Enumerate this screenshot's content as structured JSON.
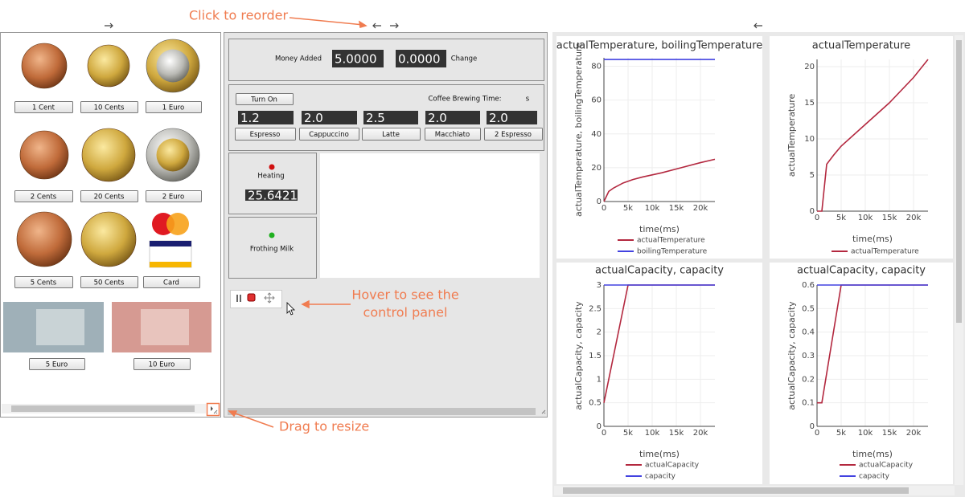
{
  "annotations": {
    "reorder": "Click to reorder",
    "hover": [
      "Hover to see the",
      "control panel"
    ],
    "resize": "Drag to resize"
  },
  "payments": [
    "1 Cent",
    "10 Cents",
    "1 Euro",
    "2 Cents",
    "20 Cents",
    "2 Euro",
    "5 Cents",
    "50 Cents",
    "Card",
    "5 Euro",
    "10 Euro"
  ],
  "machine": {
    "money_added_label": "Money Added",
    "money_added": "5.0000",
    "change": "0.0000",
    "change_label": "Change",
    "turn_on": "Turn On",
    "brewing_time_label": "Coffee Brewing Time:",
    "brewing_unit": "s",
    "brew_times": [
      "1.2",
      "2.0",
      "2.5",
      "2.0",
      "2.0"
    ],
    "drinks": [
      "Espresso",
      "Cappuccino",
      "Latte",
      "Macchiato",
      "2 Espresso"
    ],
    "heating_label": "Heating",
    "heating_value": "25.6421",
    "frothing_label": "Frothing Milk"
  },
  "plots": [
    {
      "type": "line",
      "title": "actualTemperature, boilingTemperature",
      "x_label": "time(ms)",
      "y_label": "actualTemperature, boilingTemperature",
      "xlim": [
        0,
        23000
      ],
      "ylim": [
        0,
        85
      ],
      "xticks": [
        0,
        {
          "value": 5000,
          "label": "5k"
        },
        {
          "value": 10000,
          "label": "10k"
        },
        {
          "value": 15000,
          "label": "15k"
        },
        {
          "value": 20000,
          "label": "20k"
        }
      ],
      "yticks": [
        0,
        20,
        40,
        60,
        80
      ],
      "grid": true,
      "series": [
        {
          "name": "actualTemperature",
          "color": "#b3283f",
          "x": [
            0,
            1000,
            2000,
            4000,
            6000,
            8000,
            12000,
            16000,
            20000,
            23000
          ],
          "values": [
            0,
            6,
            8,
            11,
            13,
            14.5,
            17,
            20,
            23,
            25
          ]
        },
        {
          "name": "boilingTemperature",
          "color": "#4242e0",
          "x": [
            0,
            23000
          ],
          "values": [
            84,
            84
          ]
        }
      ]
    },
    {
      "type": "line",
      "title": "actualTemperature",
      "x_label": "time(ms)",
      "y_label": "actualTemperature",
      "xlim": [
        0,
        23000
      ],
      "ylim": [
        0,
        21
      ],
      "xticks": [
        0,
        {
          "value": 5000,
          "label": "5k"
        },
        {
          "value": 10000,
          "label": "10k"
        },
        {
          "value": 15000,
          "label": "15k"
        },
        {
          "value": 20000,
          "label": "20k"
        }
      ],
      "yticks": [
        0,
        5,
        10,
        15,
        20
      ],
      "grid": true,
      "series": [
        {
          "name": "actualTemperature",
          "color": "#b3283f",
          "x": [
            0,
            1000,
            2000,
            3500,
            5000,
            10000,
            15000,
            20000,
            23000
          ],
          "values": [
            0,
            0,
            6.5,
            7.8,
            9,
            12,
            15,
            18.5,
            21
          ]
        }
      ]
    },
    {
      "type": "line",
      "title": "actualCapacity, capacity",
      "x_label": "time(ms)",
      "y_label": "actualCapacity, capacity",
      "xlim": [
        0,
        23000
      ],
      "ylim": [
        0,
        3
      ],
      "xticks": [
        0,
        {
          "value": 5000,
          "label": "5k"
        },
        {
          "value": 10000,
          "label": "10k"
        },
        {
          "value": 15000,
          "label": "15k"
        },
        {
          "value": 20000,
          "label": "20k"
        }
      ],
      "yticks": [
        0,
        0.5,
        1,
        1.5,
        2,
        2.5,
        3
      ],
      "grid": true,
      "series": [
        {
          "name": "actualCapacity",
          "color": "#b3283f",
          "x": [
            0,
            5000,
            23000
          ],
          "values": [
            0.5,
            3,
            3
          ]
        },
        {
          "name": "capacity",
          "color": "#4242e0",
          "x": [
            0,
            23000
          ],
          "values": [
            3,
            3
          ]
        }
      ]
    },
    {
      "type": "line",
      "title": "actualCapacity, capacity",
      "x_label": "time(ms)",
      "y_label": "actualCapacity, capacity",
      "xlim": [
        0,
        23000
      ],
      "ylim": [
        0,
        0.6
      ],
      "xticks": [
        0,
        {
          "value": 5000,
          "label": "5k"
        },
        {
          "value": 10000,
          "label": "10k"
        },
        {
          "value": 15000,
          "label": "15k"
        },
        {
          "value": 20000,
          "label": "20k"
        }
      ],
      "yticks": [
        0,
        0.1,
        0.2,
        0.3,
        0.4,
        0.5,
        0.6
      ],
      "grid": true,
      "series": [
        {
          "name": "actualCapacity",
          "color": "#b3283f",
          "x": [
            0,
            1000,
            5000,
            23000
          ],
          "values": [
            0.1,
            0.1,
            0.6,
            0.6
          ]
        },
        {
          "name": "capacity",
          "color": "#4242e0",
          "x": [
            0,
            23000
          ],
          "values": [
            0.6,
            0.6
          ]
        }
      ]
    }
  ]
}
